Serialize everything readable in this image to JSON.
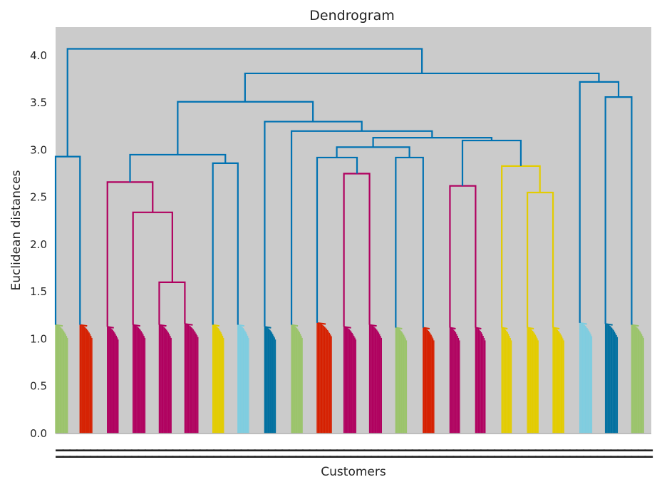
{
  "chart_data": {
    "type": "dendrogram",
    "title": "Dendrogram",
    "xlabel": "Customers",
    "ylabel": "Euclidean distances",
    "ylim": [
      0,
      4.3
    ],
    "yticks": [
      0.0,
      0.5,
      1.0,
      1.5,
      2.0,
      2.5,
      3.0,
      3.5,
      4.0
    ],
    "ytick_labels": [
      "0.0",
      "0.5",
      "1.0",
      "1.5",
      "2.0",
      "2.5",
      "3.0",
      "3.5",
      "4.0"
    ],
    "grid": false,
    "leaf_labels_note": "Leaf labels (customer indices) are overlapping and unreadable",
    "colors": {
      "background": "#cbcbcb",
      "above_threshold": "#0072b2",
      "green": "#9bc46b",
      "red": "#d62000",
      "magenta": "#b0005f",
      "yellow": "#e3cc00",
      "lightblue": "#7fcde0",
      "blue": "#0070a0"
    },
    "leaf_clusters": [
      {
        "pos": 0.0,
        "width": 0.02,
        "height": 1.15,
        "color": "green"
      },
      {
        "pos": 0.041,
        "width": 0.02,
        "height": 1.15,
        "color": "red"
      },
      {
        "pos": 0.087,
        "width": 0.018,
        "height": 1.13,
        "color": "magenta"
      },
      {
        "pos": 0.13,
        "width": 0.02,
        "height": 1.15,
        "color": "magenta"
      },
      {
        "pos": 0.174,
        "width": 0.02,
        "height": 1.15,
        "color": "magenta"
      },
      {
        "pos": 0.217,
        "width": 0.022,
        "height": 1.16,
        "color": "magenta"
      },
      {
        "pos": 0.264,
        "width": 0.018,
        "height": 1.15,
        "color": "yellow"
      },
      {
        "pos": 0.306,
        "width": 0.018,
        "height": 1.15,
        "color": "lightblue"
      },
      {
        "pos": 0.351,
        "width": 0.018,
        "height": 1.13,
        "color": "blue"
      },
      {
        "pos": 0.396,
        "width": 0.018,
        "height": 1.15,
        "color": "green"
      },
      {
        "pos": 0.439,
        "width": 0.024,
        "height": 1.17,
        "color": "red"
      },
      {
        "pos": 0.484,
        "width": 0.02,
        "height": 1.13,
        "color": "magenta"
      },
      {
        "pos": 0.527,
        "width": 0.02,
        "height": 1.15,
        "color": "magenta"
      },
      {
        "pos": 0.571,
        "width": 0.018,
        "height": 1.12,
        "color": "green"
      },
      {
        "pos": 0.617,
        "width": 0.018,
        "height": 1.12,
        "color": "red"
      },
      {
        "pos": 0.662,
        "width": 0.016,
        "height": 1.12,
        "color": "magenta"
      },
      {
        "pos": 0.705,
        "width": 0.016,
        "height": 1.12,
        "color": "magenta"
      },
      {
        "pos": 0.749,
        "width": 0.016,
        "height": 1.12,
        "color": "yellow"
      },
      {
        "pos": 0.792,
        "width": 0.018,
        "height": 1.12,
        "color": "yellow"
      },
      {
        "pos": 0.835,
        "width": 0.018,
        "height": 1.12,
        "color": "yellow"
      },
      {
        "pos": 0.88,
        "width": 0.02,
        "height": 1.17,
        "color": "lightblue"
      },
      {
        "pos": 0.923,
        "width": 0.02,
        "height": 1.16,
        "color": "blue"
      },
      {
        "pos": 0.967,
        "width": 0.02,
        "height": 1.15,
        "color": "green"
      }
    ],
    "merges": [
      {
        "x": [
          0.0,
          0.041
        ],
        "h": 2.93,
        "left_h": 1.15,
        "right_h": 1.15,
        "color": "above_threshold"
      },
      {
        "x": [
          0.174,
          0.217
        ],
        "h": 1.6,
        "left_h": 1.15,
        "right_h": 1.16,
        "color": "magenta"
      },
      {
        "x": [
          0.13,
          0.196
        ],
        "h": 2.34,
        "left_h": 1.15,
        "right_h": 1.6,
        "color": "magenta"
      },
      {
        "x": [
          0.087,
          0.163
        ],
        "h": 2.66,
        "left_h": 1.13,
        "right_h": 2.34,
        "color": "magenta"
      },
      {
        "x": [
          0.264,
          0.306
        ],
        "h": 2.86,
        "left_h": 1.15,
        "right_h": 1.15,
        "color": "above_threshold"
      },
      {
        "x": [
          0.125,
          0.285
        ],
        "h": 2.95,
        "left_h": 2.66,
        "right_h": 2.86,
        "color": "above_threshold"
      },
      {
        "x": [
          0.484,
          0.527
        ],
        "h": 2.75,
        "left_h": 1.13,
        "right_h": 1.15,
        "color": "magenta"
      },
      {
        "x": [
          0.439,
          0.506
        ],
        "h": 2.92,
        "left_h": 1.17,
        "right_h": 2.75,
        "color": "above_threshold"
      },
      {
        "x": [
          0.571,
          0.617
        ],
        "h": 2.92,
        "left_h": 1.12,
        "right_h": 1.12,
        "color": "above_threshold"
      },
      {
        "x": [
          0.472,
          0.594
        ],
        "h": 3.03,
        "left_h": 2.92,
        "right_h": 2.92,
        "color": "above_threshold"
      },
      {
        "x": [
          0.662,
          0.705
        ],
        "h": 2.62,
        "left_h": 1.12,
        "right_h": 1.12,
        "color": "magenta"
      },
      {
        "x": [
          0.792,
          0.835
        ],
        "h": 2.55,
        "left_h": 1.12,
        "right_h": 1.12,
        "color": "yellow"
      },
      {
        "x": [
          0.749,
          0.813
        ],
        "h": 2.83,
        "left_h": 1.12,
        "right_h": 2.55,
        "color": "yellow"
      },
      {
        "x": [
          0.683,
          0.781
        ],
        "h": 3.1,
        "left_h": 2.62,
        "right_h": 2.83,
        "color": "above_threshold"
      },
      {
        "x": [
          0.533,
          0.732
        ],
        "h": 3.13,
        "left_h": 3.03,
        "right_h": 3.1,
        "color": "above_threshold"
      },
      {
        "x": [
          0.396,
          0.632
        ],
        "h": 3.2,
        "left_h": 1.15,
        "right_h": 3.13,
        "color": "above_threshold"
      },
      {
        "x": [
          0.351,
          0.514
        ],
        "h": 3.3,
        "left_h": 1.13,
        "right_h": 3.2,
        "color": "above_threshold"
      },
      {
        "x": [
          0.205,
          0.432
        ],
        "h": 3.51,
        "left_h": 2.95,
        "right_h": 3.3,
        "color": "above_threshold"
      },
      {
        "x": [
          0.923,
          0.967
        ],
        "h": 3.56,
        "left_h": 1.16,
        "right_h": 1.15,
        "color": "above_threshold"
      },
      {
        "x": [
          0.88,
          0.945
        ],
        "h": 3.72,
        "left_h": 1.17,
        "right_h": 3.56,
        "color": "above_threshold"
      },
      {
        "x": [
          0.318,
          0.912
        ],
        "h": 3.81,
        "left_h": 3.51,
        "right_h": 3.72,
        "color": "above_threshold"
      },
      {
        "x": [
          0.02,
          0.615
        ],
        "h": 4.07,
        "left_h": 2.93,
        "right_h": 3.81,
        "color": "above_threshold"
      }
    ]
  }
}
